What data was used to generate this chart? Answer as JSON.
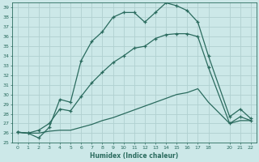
{
  "xlabel": "Humidex (Indice chaleur)",
  "ylabel": "",
  "xlim": [
    -0.5,
    22.5
  ],
  "ylim": [
    25,
    39.5
  ],
  "yticks": [
    25,
    26,
    27,
    28,
    29,
    30,
    31,
    32,
    33,
    34,
    35,
    36,
    37,
    38,
    39
  ],
  "xticks": [
    0,
    1,
    2,
    3,
    4,
    5,
    6,
    7,
    8,
    9,
    10,
    11,
    12,
    13,
    14,
    15,
    16,
    17,
    18,
    20,
    21,
    22
  ],
  "background_color": "#cce8e8",
  "grid_color": "#b0d0d0",
  "line_color": "#2a6b5e",
  "line_width": 0.9,
  "series1_x": [
    0,
    1,
    2,
    3,
    4,
    5,
    6,
    7,
    8,
    9,
    10,
    11,
    12,
    13,
    14,
    15,
    16,
    17,
    18,
    20,
    21,
    22
  ],
  "series1_y": [
    26.1,
    26.0,
    25.5,
    26.6,
    29.5,
    29.2,
    33.5,
    35.5,
    36.5,
    38.0,
    38.5,
    38.5,
    37.5,
    38.5,
    39.5,
    39.2,
    38.7,
    37.5,
    34.0,
    27.7,
    28.5,
    27.5
  ],
  "series2_x": [
    0,
    1,
    2,
    3,
    4,
    5,
    6,
    7,
    8,
    9,
    10,
    11,
    12,
    13,
    14,
    15,
    16,
    17,
    18,
    20,
    21,
    22
  ],
  "series2_y": [
    26.1,
    26.0,
    26.3,
    27.0,
    28.5,
    28.3,
    29.8,
    31.2,
    32.3,
    33.3,
    34.0,
    34.8,
    35.0,
    35.8,
    36.2,
    36.3,
    36.3,
    36.0,
    32.8,
    27.0,
    27.7,
    27.3
  ],
  "series3_x": [
    0,
    1,
    2,
    3,
    4,
    5,
    6,
    7,
    8,
    9,
    10,
    11,
    12,
    13,
    14,
    15,
    16,
    17,
    18,
    20,
    21,
    22
  ],
  "series3_y": [
    26.1,
    26.0,
    26.0,
    26.2,
    26.3,
    26.3,
    26.6,
    26.9,
    27.3,
    27.6,
    28.0,
    28.4,
    28.8,
    29.2,
    29.6,
    30.0,
    30.2,
    30.6,
    29.2,
    27.0,
    27.3,
    27.3
  ]
}
